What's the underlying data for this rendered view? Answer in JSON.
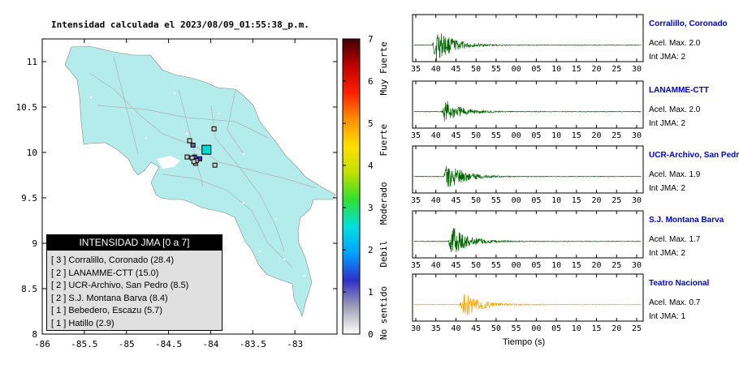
{
  "map": {
    "title": "Intensidad calculada el 2023/08/09_01:55:38_p.m.",
    "x_ticks": [
      "-86",
      "-85.5",
      "-85",
      "-84.5",
      "-84",
      "-83.5",
      "-83"
    ],
    "y_ticks": [
      "11",
      "10.5",
      "10",
      "9.5",
      "9",
      "8.5",
      "8"
    ],
    "stations": [
      {
        "lon": -84.05,
        "lat": 10.03,
        "intensity": 3,
        "color": "#00d8d0"
      },
      {
        "lon": -84.13,
        "lat": 9.93,
        "intensity": 2,
        "color": "#3333cc"
      },
      {
        "lon": -84.19,
        "lat": 9.95,
        "intensity": 2,
        "color": "#5555bb"
      },
      {
        "lon": -84.21,
        "lat": 10.08,
        "intensity": 2,
        "color": "#6666aa"
      },
      {
        "lon": -84.18,
        "lat": 9.88,
        "intensity": 1,
        "color": "#bbbbd0"
      },
      {
        "lon": -84.17,
        "lat": 9.91,
        "intensity": 1,
        "color": "#bbbbd0"
      },
      {
        "lon": -84.22,
        "lat": 9.94,
        "intensity": 1,
        "color": "#cccccc"
      },
      {
        "lon": -83.95,
        "lat": 9.86,
        "intensity": 1,
        "color": "#cccccc"
      },
      {
        "lon": -84.25,
        "lat": 10.13,
        "intensity": 1,
        "color": "#cccccc"
      },
      {
        "lon": -84.28,
        "lat": 9.95,
        "intensity": 1,
        "color": "#cccccc"
      },
      {
        "lon": -83.96,
        "lat": 10.26,
        "intensity": 1,
        "color": "#cccccc"
      },
      {
        "lon": -84.2,
        "lat": 9.9,
        "intensity": 1,
        "color": "#cccccc"
      }
    ]
  },
  "legend": {
    "title": "INTENSIDAD JMA [0 a 7]",
    "items": [
      "[ 3 ]  Corralillo, Coronado (28.4)",
      "[ 2 ]  LANAMME-CTT (15.0)",
      "[ 2 ]  UCR-Archivo, San Pedro (8.5)",
      "[ 2 ]  S.J. Montana Barva (8.4)",
      "[ 1 ]  Bebedero, Escazu (5.7)",
      "[ 1 ]  Hatillo (2.9)"
    ]
  },
  "colorbar": {
    "ticks": [
      "0",
      "1",
      "2",
      "3",
      "4",
      "5",
      "6",
      "7"
    ],
    "labels": [
      "No sentido",
      "Debil",
      "Moderado",
      "Fuerte",
      "Muy Fuerte"
    ],
    "colors": [
      "#ffffff",
      "#a0a0b8",
      "#3030c8",
      "#00a0ff",
      "#00e0e0",
      "#30e030",
      "#c0e000",
      "#ffe000",
      "#ff9000",
      "#ff2000",
      "#c00000",
      "#400000"
    ]
  },
  "waveforms": {
    "xlabel": "Tiempo (s)",
    "traces": [
      {
        "name": "Corralillo, Coronado",
        "acel": "Acel. Max. 2.0",
        "int": "Int JMA: 2",
        "color": "#006400",
        "ticks": [
          "35",
          "40",
          "45",
          "50",
          "55",
          "00",
          "05",
          "10",
          "15",
          "20",
          "25",
          "30"
        ],
        "onset": 0.08,
        "amp": 0.85
      },
      {
        "name": "LANAMME-CTT",
        "acel": "Acel. Max. 2.0",
        "int": "Int JMA: 2",
        "color": "#006400",
        "ticks": [
          "35",
          "40",
          "45",
          "50",
          "55",
          "00",
          "05",
          "10",
          "15",
          "20",
          "25",
          "30"
        ],
        "onset": 0.12,
        "amp": 0.6
      },
      {
        "name": "UCR-Archivo, San Pedro",
        "acel": "Acel. Max. 1.9",
        "int": "Int JMA: 2",
        "color": "#006400",
        "ticks": [
          "35",
          "40",
          "45",
          "50",
          "55",
          "00",
          "05",
          "10",
          "15",
          "20",
          "25",
          "30"
        ],
        "onset": 0.13,
        "amp": 0.7
      },
      {
        "name": "S.J. Montana Barva",
        "acel": "Acel. Max. 1.7",
        "int": "Int JMA: 2",
        "color": "#006400",
        "ticks": [
          "35",
          "40",
          "45",
          "50",
          "55",
          "00",
          "05",
          "10",
          "15",
          "20",
          "25",
          "30"
        ],
        "onset": 0.15,
        "amp": 0.75
      },
      {
        "name": "Teatro Nacional",
        "acel": "Acel. Max. 0.7",
        "int": "Int JMA: 1",
        "color": "#ffa500",
        "ticks": [
          "30",
          "35",
          "40",
          "45",
          "50",
          "55",
          "00",
          "05",
          "10",
          "15",
          "20",
          "25"
        ],
        "onset": 0.2,
        "amp": 0.7
      }
    ]
  }
}
